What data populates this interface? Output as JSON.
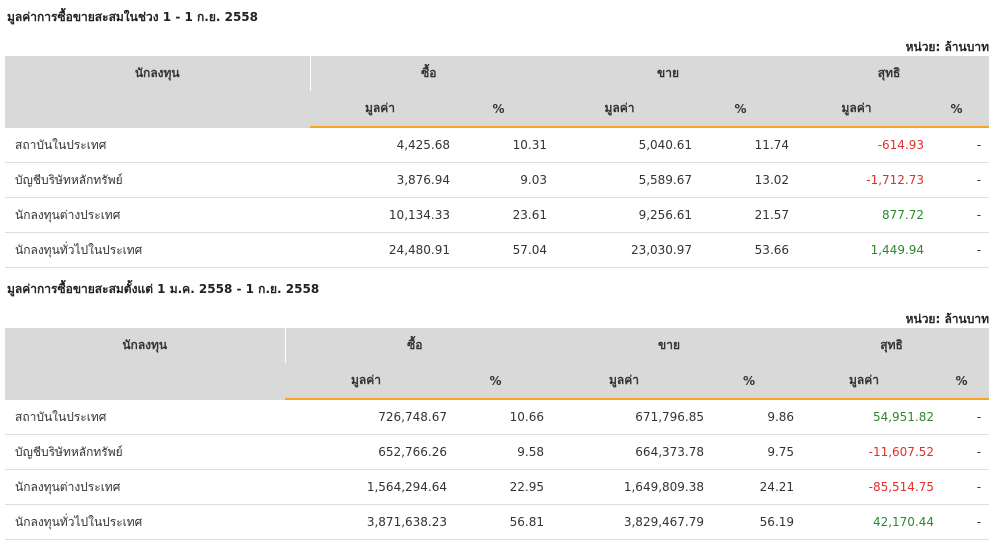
{
  "sections": [
    {
      "title": "มูลค่าการซื้อขายสะสมในช่วง 1 - 1 ก.ย. 2558",
      "unit": "หน่วย: ล้านบาท",
      "headers": {
        "investor": "นักลงทุน",
        "buy": "ซื้อ",
        "sell": "ขาย",
        "net": "สุทธิ",
        "value": "มูลค่า",
        "percent": "%"
      },
      "rows": [
        {
          "name": "สถาบันในประเทศ",
          "buy_value": "4,425.68",
          "buy_pct": "10.31",
          "sell_value": "5,040.61",
          "sell_pct": "11.74",
          "net_value": "-614.93",
          "net_pct": "-",
          "net_sign": "negative"
        },
        {
          "name": "บัญชีบริษัทหลักทรัพย์",
          "buy_value": "3,876.94",
          "buy_pct": "9.03",
          "sell_value": "5,589.67",
          "sell_pct": "13.02",
          "net_value": "-1,712.73",
          "net_pct": "-",
          "net_sign": "negative"
        },
        {
          "name": "นักลงทุนต่างประเทศ",
          "buy_value": "10,134.33",
          "buy_pct": "23.61",
          "sell_value": "9,256.61",
          "sell_pct": "21.57",
          "net_value": "877.72",
          "net_pct": "-",
          "net_sign": "positive"
        },
        {
          "name": "นักลงทุนทั่วไปในประเทศ",
          "buy_value": "24,480.91",
          "buy_pct": "57.04",
          "sell_value": "23,030.97",
          "sell_pct": "53.66",
          "net_value": "1,449.94",
          "net_pct": "-",
          "net_sign": "positive"
        }
      ]
    },
    {
      "title": "มูลค่าการซื้อขายสะสมตั้งแต่ 1 ม.ค. 2558 - 1 ก.ย. 2558",
      "unit": "หน่วย: ล้านบาท",
      "headers": {
        "investor": "นักลงทุน",
        "buy": "ซื้อ",
        "sell": "ขาย",
        "net": "สุทธิ",
        "value": "มูลค่า",
        "percent": "%"
      },
      "rows": [
        {
          "name": "สถาบันในประเทศ",
          "buy_value": "726,748.67",
          "buy_pct": "10.66",
          "sell_value": "671,796.85",
          "sell_pct": "9.86",
          "net_value": "54,951.82",
          "net_pct": "-",
          "net_sign": "positive"
        },
        {
          "name": "บัญชีบริษัทหลักทรัพย์",
          "buy_value": "652,766.26",
          "buy_pct": "9.58",
          "sell_value": "664,373.78",
          "sell_pct": "9.75",
          "net_value": "-11,607.52",
          "net_pct": "-",
          "net_sign": "negative"
        },
        {
          "name": "นักลงทุนต่างประเทศ",
          "buy_value": "1,564,294.64",
          "buy_pct": "22.95",
          "sell_value": "1,649,809.38",
          "sell_pct": "24.21",
          "net_value": "-85,514.75",
          "net_pct": "-",
          "net_sign": "negative"
        },
        {
          "name": "นักลงทุนทั่วไปในประเทศ",
          "buy_value": "3,871,638.23",
          "buy_pct": "56.81",
          "sell_value": "3,829,467.79",
          "sell_pct": "56.19",
          "net_value": "42,170.44",
          "net_pct": "-",
          "net_sign": "positive"
        }
      ]
    }
  ],
  "colors": {
    "header_bg": "#d9d9d9",
    "accent_underline": "#f5a623",
    "negative": "#e0302a",
    "positive": "#2d8a2d"
  }
}
